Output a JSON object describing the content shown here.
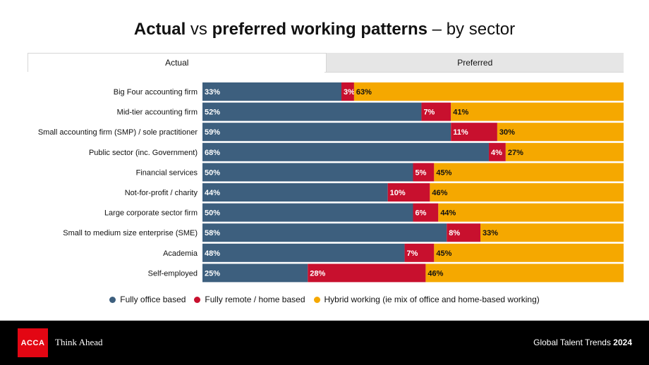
{
  "title": {
    "part1": "Actual",
    "part2": " vs ",
    "part3": "preferred working patterns",
    "part4": " – by sector"
  },
  "tabs": {
    "actual": "Actual",
    "preferred": "Preferred"
  },
  "legend": [
    {
      "label": "Fully office based",
      "color": "#3d5f7e"
    },
    {
      "label": "Fully remote / home based",
      "color": "#c8102e"
    },
    {
      "label": "Hybrid working (ie mix of office and home-based working)",
      "color": "#f5a800"
    }
  ],
  "footer": {
    "logo": "ACCA",
    "tagline": "Think Ahead",
    "report_prefix": "Global Talent Trends ",
    "report_year": "2024"
  },
  "chart_data": {
    "type": "bar",
    "orientation": "horizontal",
    "stacked": true,
    "categories": [
      "Big Four accounting firm",
      "Mid-tier accounting firm",
      "Small accounting firm (SMP) / sole practitioner",
      "Public sector (inc. Government)",
      "Financial services",
      "Not-for-profit / charity",
      "Large corporate sector firm",
      "Small to medium size enterprise (SME)",
      "Academia",
      "Self-employed"
    ],
    "series": [
      {
        "name": "Fully office based",
        "color": "#3d5f7e",
        "values": [
          33,
          52,
          59,
          68,
          50,
          44,
          50,
          58,
          48,
          25
        ]
      },
      {
        "name": "Fully remote / home based",
        "color": "#c8102e",
        "values": [
          3,
          7,
          11,
          4,
          5,
          10,
          6,
          8,
          7,
          28
        ]
      },
      {
        "name": "Hybrid working (ie mix of office and home-based working)",
        "color": "#f5a800",
        "values": [
          63,
          41,
          30,
          27,
          45,
          46,
          44,
          33,
          45,
          46
        ]
      }
    ],
    "xlim": [
      0,
      100
    ],
    "value_suffix": "%",
    "legend_position": "bottom"
  }
}
